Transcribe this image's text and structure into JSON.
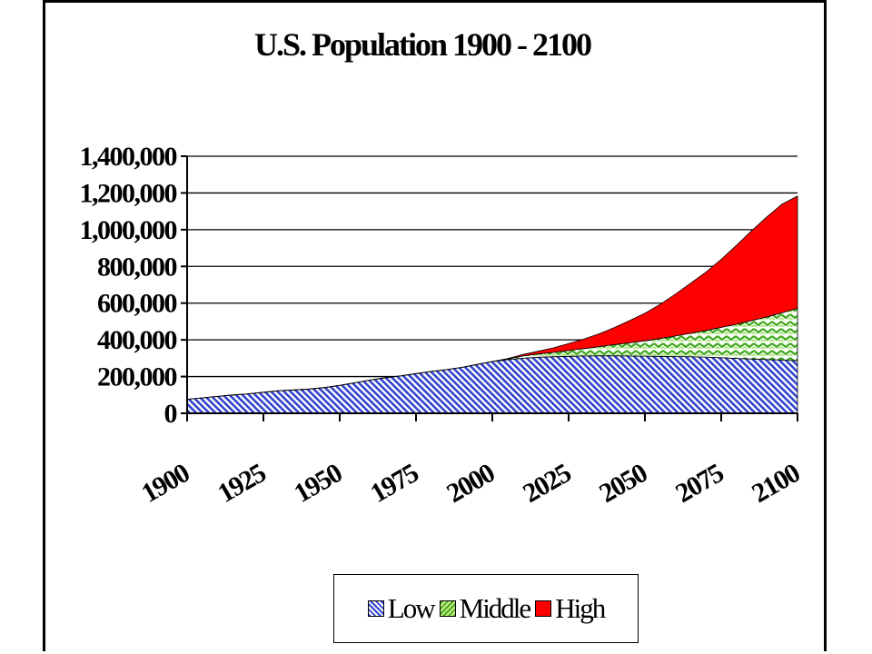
{
  "chart_data": {
    "type": "area",
    "stacked": true,
    "title": "U.S. Population 1900 - 2100",
    "xlabel": "",
    "ylabel": "",
    "xlim": [
      1900,
      2100
    ],
    "ylim": [
      0,
      1400000
    ],
    "x_ticks": [
      1900,
      1925,
      1950,
      1975,
      2000,
      2025,
      2050,
      2075,
      2100
    ],
    "x_tick_labels": [
      "1900",
      "1925",
      "1950",
      "1975",
      "2000",
      "2025",
      "2050",
      "2075",
      "2100"
    ],
    "y_ticks": [
      0,
      200000,
      400000,
      600000,
      800000,
      1000000,
      1200000,
      1400000
    ],
    "y_tick_labels": [
      "0",
      "200,000",
      "400,000",
      "600,000",
      "800,000",
      "1,000,000",
      "1,200,000",
      "1,400,000"
    ],
    "grid": "horizontal",
    "legend_position": "bottom",
    "x": [
      1900,
      1905,
      1910,
      1915,
      1920,
      1925,
      1930,
      1935,
      1940,
      1945,
      1950,
      1955,
      1960,
      1965,
      1970,
      1975,
      1980,
      1985,
      1990,
      1995,
      2000,
      2005,
      2010,
      2015,
      2020,
      2025,
      2030,
      2035,
      2040,
      2045,
      2050,
      2055,
      2060,
      2065,
      2070,
      2075,
      2080,
      2085,
      2090,
      2095,
      2100
    ],
    "series": [
      {
        "name": "Low",
        "color": "#3344cc",
        "pattern": "diagonal-hatch",
        "values": [
          76000,
          84000,
          92000,
          100000,
          106000,
          115000,
          123000,
          127000,
          132000,
          140000,
          152000,
          166000,
          181000,
          194000,
          204000,
          216000,
          228000,
          238000,
          250000,
          266000,
          282000,
          292000,
          300000,
          305000,
          308000,
          310000,
          312000,
          313000,
          313000,
          312000,
          311000,
          310000,
          309000,
          308000,
          306000,
          303000,
          299000,
          296000,
          293000,
          290000,
          287000
        ]
      },
      {
        "name": "Middle",
        "color": "#66cc33",
        "pattern": "zigzag",
        "values": [
          0,
          0,
          0,
          0,
          0,
          0,
          0,
          0,
          0,
          0,
          0,
          0,
          0,
          0,
          0,
          0,
          0,
          0,
          0,
          0,
          0,
          4000,
          12000,
          18000,
          24000,
          32000,
          40000,
          50000,
          61000,
          72000,
          84000,
          97000,
          112000,
          128000,
          145000,
          165000,
          186000,
          209000,
          232000,
          258000,
          285000
        ]
      },
      {
        "name": "High",
        "color": "#ff0000",
        "pattern": "solid",
        "values": [
          0,
          0,
          0,
          0,
          0,
          0,
          0,
          0,
          0,
          0,
          0,
          0,
          0,
          0,
          0,
          0,
          0,
          0,
          0,
          0,
          0,
          2000,
          8000,
          15000,
          24000,
          38000,
          52000,
          70000,
          93000,
          121000,
          150000,
          186000,
          228000,
          273000,
          318000,
          370000,
          430000,
          490000,
          545000,
          592000,
          611000
        ]
      }
    ]
  }
}
